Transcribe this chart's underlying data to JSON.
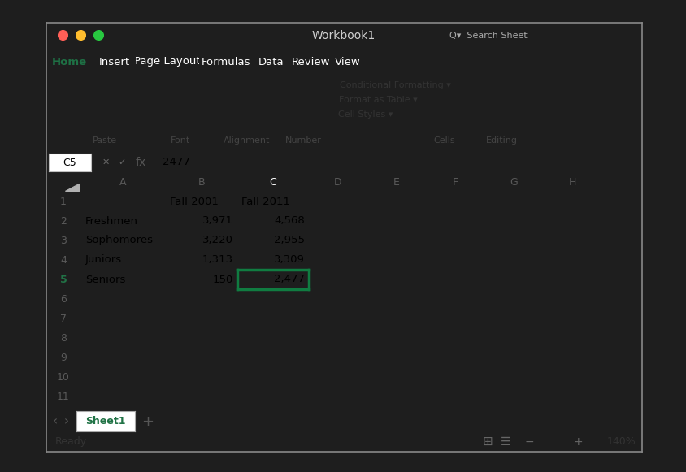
{
  "title_bar": "Workbook1",
  "cell_ref": "C5",
  "formula_value": "2477",
  "sheet_tab": "Sheet1",
  "status": "Ready",
  "zoom_level": "140%",
  "ribbon_tabs": [
    "Home",
    "Insert",
    "Page Layout",
    "Formulas",
    "Data",
    "Review",
    "View"
  ],
  "active_tab": "Home",
  "col_labels": [
    "A",
    "B",
    "C",
    "D",
    "E",
    "F",
    "G",
    "H"
  ],
  "num_rows": 11,
  "table_data": [
    [
      "",
      "Fall 2001",
      "Fall 2011",
      "",
      "",
      "",
      "",
      ""
    ],
    [
      "Freshmen",
      "3,971",
      "4,568",
      "",
      "",
      "",
      "",
      ""
    ],
    [
      "Sophomores",
      "3,220",
      "2,955",
      "",
      "",
      "",
      "",
      ""
    ],
    [
      "Juniors",
      "1,313",
      "3,309",
      "",
      "",
      "",
      "",
      ""
    ],
    [
      "Seniors",
      "150",
      "2,477",
      "",
      "",
      "",
      "",
      ""
    ],
    [
      "",
      "",
      "",
      "",
      "",
      "",
      "",
      ""
    ],
    [
      "",
      "",
      "",
      "",
      "",
      "",
      "",
      ""
    ],
    [
      "",
      "",
      "",
      "",
      "",
      "",
      "",
      ""
    ],
    [
      "",
      "",
      "",
      "",
      "",
      "",
      "",
      ""
    ],
    [
      "",
      "",
      "",
      "",
      "",
      "",
      "",
      ""
    ],
    [
      "",
      "",
      "",
      "",
      "",
      "",
      "",
      ""
    ]
  ],
  "selected_row": 4,
  "selected_col": 2,
  "colors": {
    "outer_bg": "#1e1e1e",
    "window_bg": "#f0f0f0",
    "title_bar_bg": "#2d2d2d",
    "title_text": "#d0d0d0",
    "ribbon_green": "#1e7145",
    "ribbon_tab_active_bg": "#ffffff",
    "ribbon_tab_active_fg": "#1e7145",
    "ribbon_tab_fg": "#ffffff",
    "toolbar_bg": "#f3f3f3",
    "toolbar_border": "#d0d0d0",
    "cell_bg": "#ffffff",
    "grid_line": "#d0d0d0",
    "header_bg": "#f2f2f2",
    "header_fg": "#595959",
    "selected_col_header_bg": "#107c41",
    "selected_col_header_fg": "#ffffff",
    "selected_row_header_fg": "#217346",
    "selected_row_header_bg": "#e6f4ea",
    "selected_cell_border": "#107c41",
    "formula_bar_bg": "#f8f8f8",
    "status_bar_bg": "#d8d8d8",
    "sheet_tab_bar_bg": "#e8e8e8",
    "sheet_tab_bg": "#ffffff",
    "traffic_red": "#ff5f57",
    "traffic_yellow": "#ffbd2e",
    "traffic_green": "#28c840"
  }
}
